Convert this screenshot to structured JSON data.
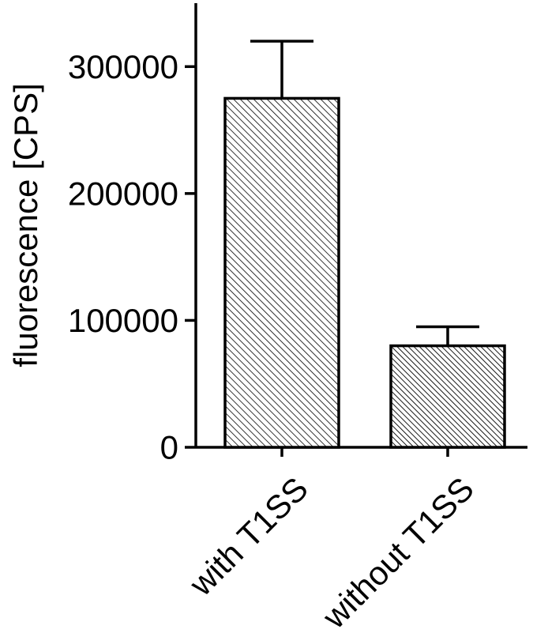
{
  "chart_data": {
    "type": "bar",
    "title": "",
    "xlabel": "",
    "ylabel": "fluorescence [CPS]",
    "categories": [
      "with T1SS",
      "without T1SS"
    ],
    "values": [
      275000,
      80000
    ],
    "error_upper": [
      320000,
      95000
    ],
    "ylim": [
      0,
      350000
    ],
    "yticks": [
      0,
      100000,
      200000,
      300000
    ],
    "ytick_labels": [
      "0",
      "100000",
      "200000",
      "300000"
    ],
    "grid": false,
    "bar_fill": "hatched",
    "bar_patterns": [
      "diagonal-hatch-fine",
      "diagonal-hatch-dense"
    ],
    "colors": {
      "stroke": "#000000",
      "background": "#ffffff"
    }
  }
}
